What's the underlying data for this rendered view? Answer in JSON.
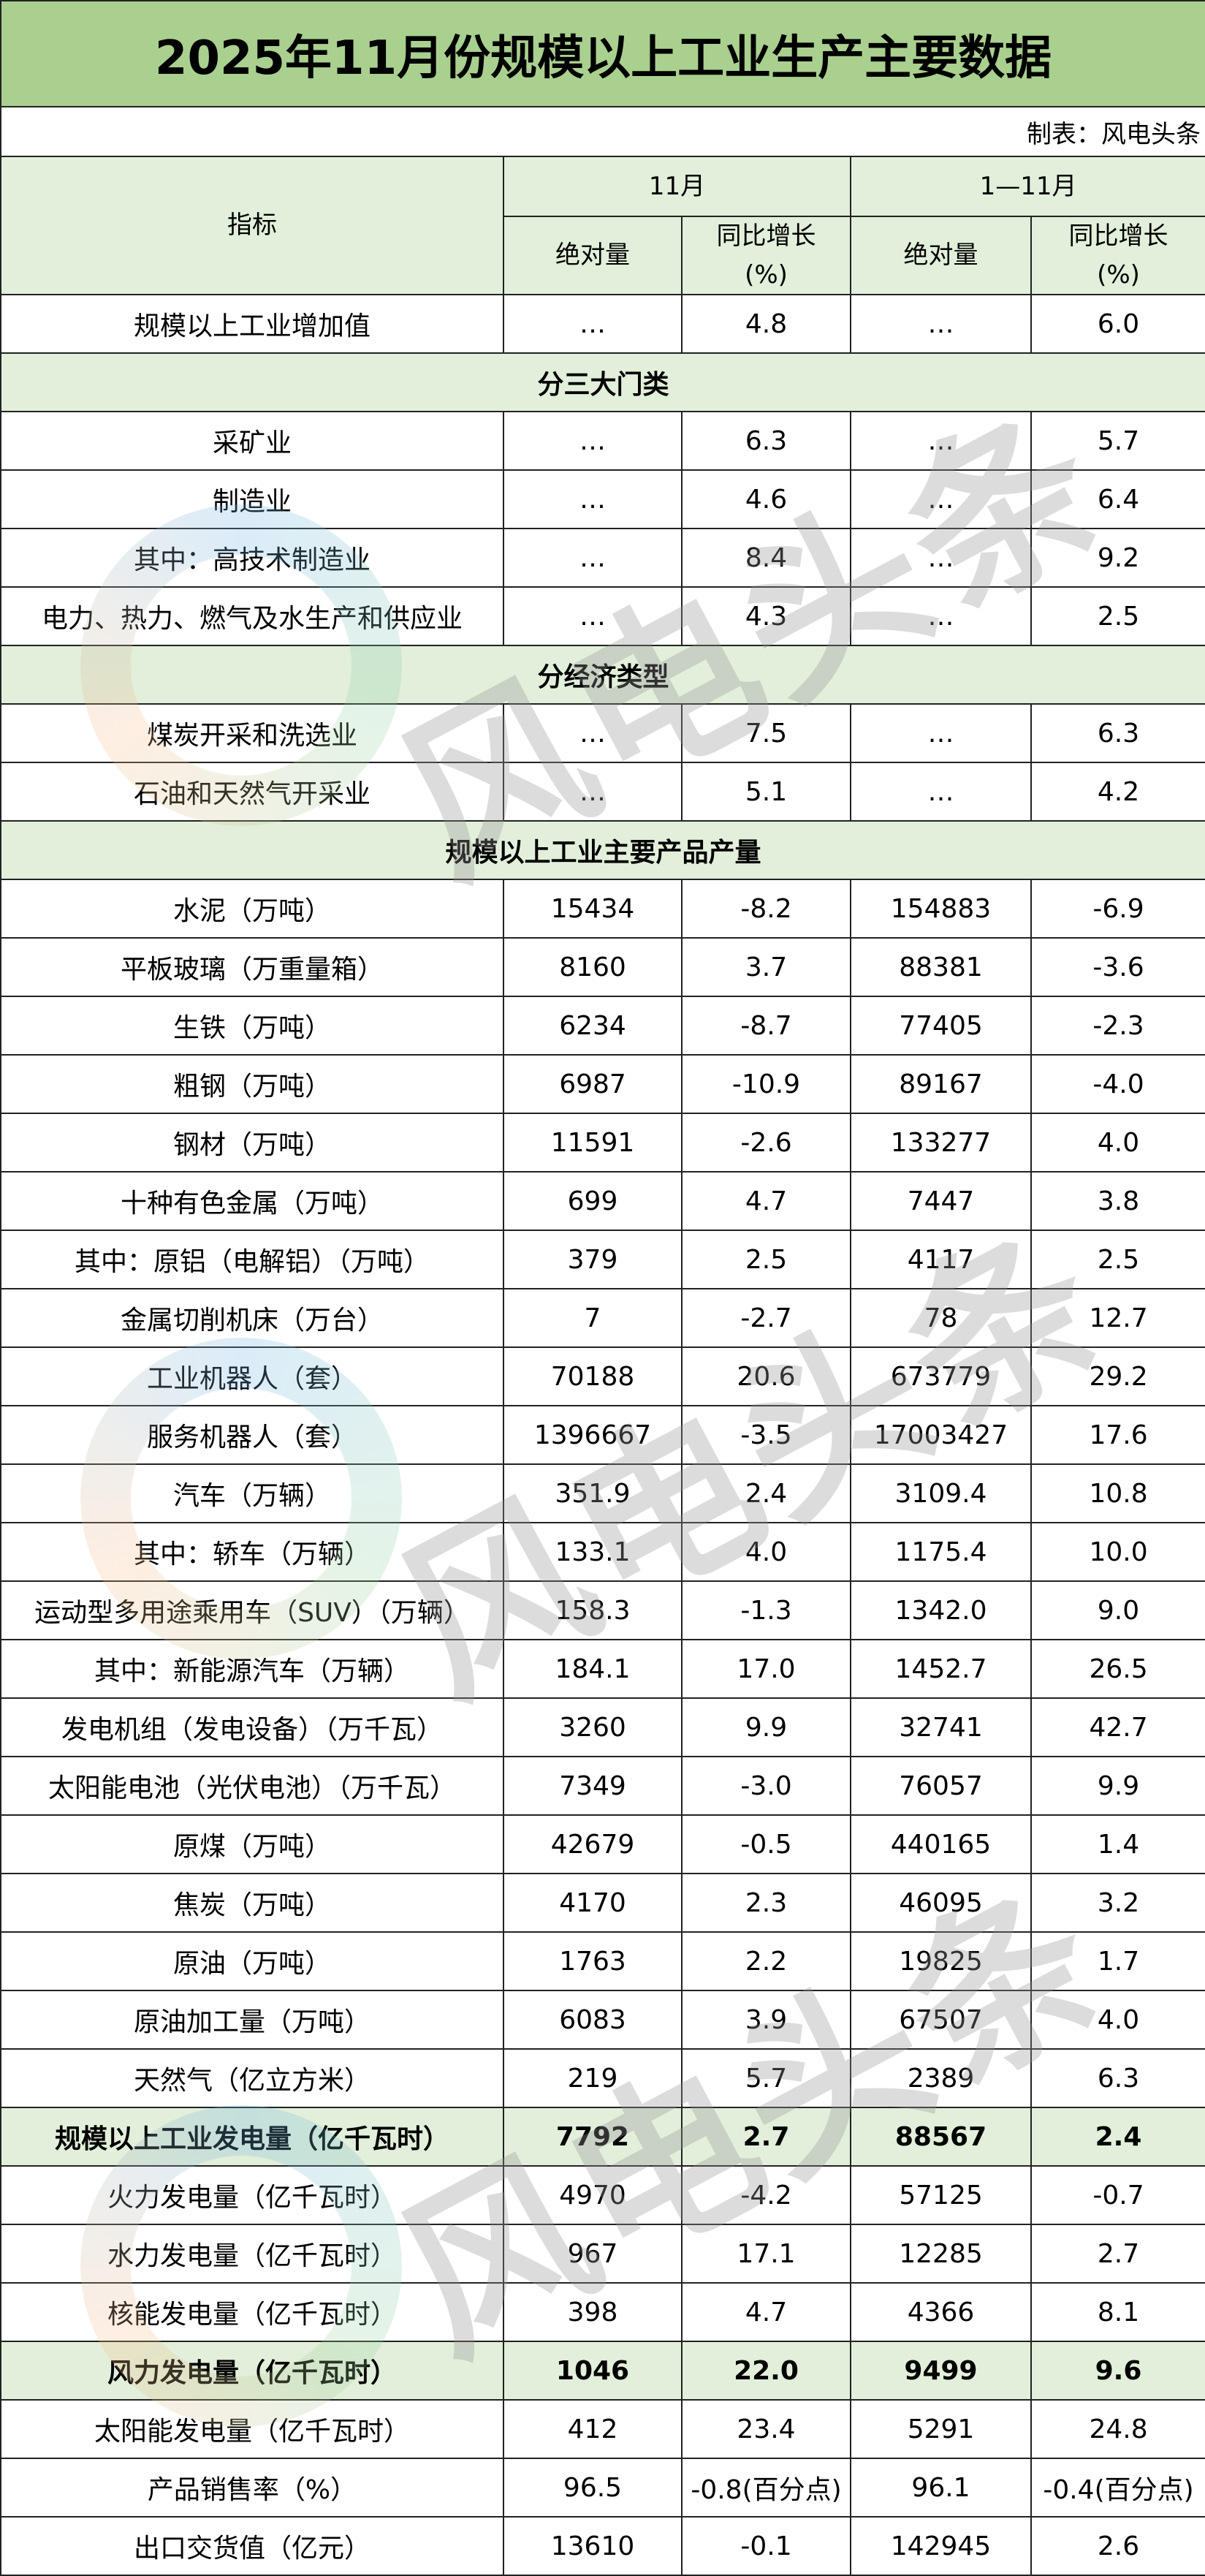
{
  "title": "2025年11月份规模以上工业生产主要数据",
  "credit": "制表：风电头条",
  "watermark": "风电头条",
  "header": {
    "indicator": "指标",
    "period1": "11月",
    "period2": "1—11月",
    "abs": "绝对量",
    "yoy": "同比增长\n(%)"
  },
  "rows": [
    {
      "type": "data",
      "name": "规模以上工业增加值",
      "v": [
        "…",
        "4.8",
        "…",
        "6.0"
      ]
    },
    {
      "type": "section",
      "name": "分三大门类"
    },
    {
      "type": "data",
      "name": "采矿业",
      "v": [
        "…",
        "6.3",
        "…",
        "5.7"
      ]
    },
    {
      "type": "data",
      "name": "制造业",
      "v": [
        "…",
        "4.6",
        "…",
        "6.4"
      ]
    },
    {
      "type": "data",
      "name": "其中：高技术制造业",
      "v": [
        "…",
        "8.4",
        "…",
        "9.2"
      ]
    },
    {
      "type": "data",
      "name": "电力、热力、燃气及水生产和供应业",
      "v": [
        "…",
        "4.3",
        "…",
        "2.5"
      ]
    },
    {
      "type": "section",
      "name": "分经济类型"
    },
    {
      "type": "data",
      "name": "煤炭开采和洗选业",
      "v": [
        "…",
        "7.5",
        "…",
        "6.3"
      ]
    },
    {
      "type": "data",
      "name": "石油和天然气开采业",
      "v": [
        "…",
        "5.1",
        "…",
        "4.2"
      ]
    },
    {
      "type": "section",
      "name": "规模以上工业主要产品产量"
    },
    {
      "type": "data",
      "name": "水泥（万吨）",
      "v": [
        "15434",
        "-8.2",
        "154883",
        "-6.9"
      ]
    },
    {
      "type": "data",
      "name": "平板玻璃（万重量箱）",
      "v": [
        "8160",
        "3.7",
        "88381",
        "-3.6"
      ]
    },
    {
      "type": "data",
      "name": "生铁（万吨）",
      "v": [
        "6234",
        "-8.7",
        "77405",
        "-2.3"
      ]
    },
    {
      "type": "data",
      "name": "粗钢（万吨）",
      "v": [
        "6987",
        "-10.9",
        "89167",
        "-4.0"
      ]
    },
    {
      "type": "data",
      "name": "钢材（万吨）",
      "v": [
        "11591",
        "-2.6",
        "133277",
        "4.0"
      ]
    },
    {
      "type": "data",
      "name": "十种有色金属（万吨）",
      "v": [
        "699",
        "4.7",
        "7447",
        "3.8"
      ]
    },
    {
      "type": "data",
      "name": "其中：原铝（电解铝）（万吨）",
      "v": [
        "379",
        "2.5",
        "4117",
        "2.5"
      ]
    },
    {
      "type": "data",
      "name": "金属切削机床（万台）",
      "v": [
        "7",
        "-2.7",
        "78",
        "12.7"
      ]
    },
    {
      "type": "data",
      "name": "工业机器人（套）",
      "v": [
        "70188",
        "20.6",
        "673779",
        "29.2"
      ]
    },
    {
      "type": "data",
      "name": "服务机器人（套）",
      "v": [
        "1396667",
        "-3.5",
        "17003427",
        "17.6"
      ]
    },
    {
      "type": "data",
      "name": "汽车（万辆）",
      "v": [
        "351.9",
        "2.4",
        "3109.4",
        "10.8"
      ]
    },
    {
      "type": "data",
      "name": "其中：轿车（万辆）",
      "v": [
        "133.1",
        "4.0",
        "1175.4",
        "10.0"
      ]
    },
    {
      "type": "data",
      "name": "运动型多用途乘用车（SUV）（万辆）",
      "v": [
        "158.3",
        "-1.3",
        "1342.0",
        "9.0"
      ]
    },
    {
      "type": "data",
      "name": "其中：新能源汽车（万辆）",
      "v": [
        "184.1",
        "17.0",
        "1452.7",
        "26.5"
      ]
    },
    {
      "type": "data",
      "name": "发电机组（发电设备）（万千瓦）",
      "v": [
        "3260",
        "9.9",
        "32741",
        "42.7"
      ]
    },
    {
      "type": "data",
      "name": "太阳能电池（光伏电池）（万千瓦）",
      "v": [
        "7349",
        "-3.0",
        "76057",
        "9.9"
      ]
    },
    {
      "type": "data",
      "name": "原煤（万吨）",
      "v": [
        "42679",
        "-0.5",
        "440165",
        "1.4"
      ]
    },
    {
      "type": "data",
      "name": "焦炭（万吨）",
      "v": [
        "4170",
        "2.3",
        "46095",
        "3.2"
      ]
    },
    {
      "type": "data",
      "name": "原油（万吨）",
      "v": [
        "1763",
        "2.2",
        "19825",
        "1.7"
      ]
    },
    {
      "type": "data",
      "name": "原油加工量（万吨）",
      "v": [
        "6083",
        "3.9",
        "67507",
        "4.0"
      ]
    },
    {
      "type": "data",
      "name": "天然气（亿立方米）",
      "v": [
        "219",
        "5.7",
        "2389",
        "6.3"
      ]
    },
    {
      "type": "highlight",
      "name": "规模以上工业发电量（亿千瓦时）",
      "v": [
        "7792",
        "2.7",
        "88567",
        "2.4"
      ]
    },
    {
      "type": "data",
      "name": "火力发电量（亿千瓦时）",
      "v": [
        "4970",
        "-4.2",
        "57125",
        "-0.7"
      ]
    },
    {
      "type": "data",
      "name": "水力发电量（亿千瓦时）",
      "v": [
        "967",
        "17.1",
        "12285",
        "2.7"
      ]
    },
    {
      "type": "data",
      "name": "核能发电量（亿千瓦时）",
      "v": [
        "398",
        "4.7",
        "4366",
        "8.1"
      ]
    },
    {
      "type": "highlight",
      "name": "风力发电量（亿千瓦时）",
      "v": [
        "1046",
        "22.0",
        "9499",
        "9.6"
      ]
    },
    {
      "type": "data",
      "name": "太阳能发电量（亿千瓦时）",
      "v": [
        "412",
        "23.4",
        "5291",
        "24.8"
      ]
    },
    {
      "type": "data",
      "name": "产品销售率（%）",
      "v": [
        "96.5",
        "-0.8(百分点)",
        "96.1",
        "-0.4(百分点)"
      ]
    },
    {
      "type": "data",
      "name": "出口交货值（亿元）",
      "v": [
        "13610",
        "-0.1",
        "142945",
        "2.6"
      ]
    }
  ]
}
